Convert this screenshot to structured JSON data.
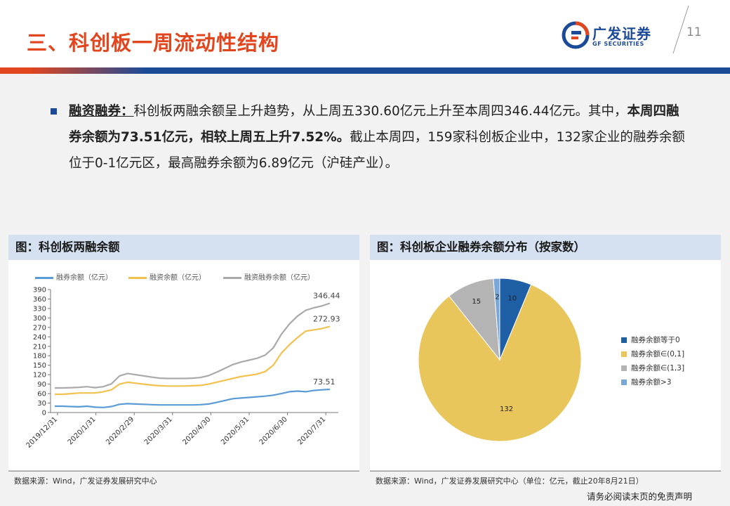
{
  "header": {
    "title": "三、科创板一周流动性结构",
    "logo_cn": "广发证券",
    "logo_en": "GF SECURITIES",
    "page_number": "11",
    "colors": {
      "red": "#e2461e",
      "blue": "#1b4b97"
    }
  },
  "body": {
    "label": "融资融券：",
    "p1": "科创板两融余额呈上升趋势，从上周五330.60亿元上升至本周四346.44亿元。其中，",
    "p2_bold": "本周四融券余额为73.51亿元，相较上周五上升7.52%。",
    "p3": "截止本周四，159家科创板企业中，132家企业的融券余额位于0-1亿元区，最高融券余额为6.89亿元（沪硅产业）。"
  },
  "left_panel": {
    "title": "图：科创板两融余额",
    "source": "数据来源：Wind，广发证券发展研究中心"
  },
  "right_panel": {
    "title": "图：科创板企业融券余额分布（按家数）",
    "source": "数据来源：Wind，广发证券发展研究中心（单位：亿元，截止20年8月21日）"
  },
  "disclaimer": "请务必阅读末页的免责声明",
  "chart_data": [
    {
      "type": "line",
      "x_ticks": [
        "2019/12/31",
        "2020/1/31",
        "2020/2/29",
        "2020/3/31",
        "2020/4/30",
        "2020/5/31",
        "2020/6/30",
        "2020/7/31"
      ],
      "ylim": [
        0,
        390
      ],
      "y_ticks": [
        0,
        30,
        60,
        90,
        120,
        150,
        180,
        210,
        240,
        270,
        300,
        330,
        360,
        390
      ],
      "series": [
        {
          "name": "融券余额（亿元）",
          "color": "#5b9bd5",
          "end_label": "73.51",
          "values": [
            20,
            20,
            19,
            18,
            20,
            17,
            16,
            19,
            26,
            28,
            27,
            26,
            25,
            24,
            24,
            24,
            24,
            24,
            25,
            27,
            32,
            38,
            44,
            46,
            48,
            50,
            52,
            55,
            60,
            66,
            68,
            66,
            70,
            72,
            73.51
          ]
        },
        {
          "name": "融资余额（亿元）",
          "color": "#f2c14e",
          "end_label": "272.93",
          "values": [
            58,
            58,
            60,
            62,
            62,
            62,
            66,
            72,
            90,
            96,
            93,
            90,
            87,
            85,
            84,
            84,
            84,
            85,
            86,
            90,
            96,
            102,
            108,
            114,
            118,
            122,
            130,
            150,
            188,
            215,
            238,
            258,
            262,
            266,
            272.93
          ]
        },
        {
          "name": "融资融券余额（亿元）",
          "color": "#aaaaaa",
          "end_label": "346.44",
          "values": [
            78,
            78,
            79,
            80,
            82,
            79,
            82,
            91,
            116,
            124,
            120,
            116,
            112,
            109,
            108,
            108,
            108,
            109,
            111,
            117,
            128,
            140,
            152,
            160,
            166,
            172,
            182,
            205,
            248,
            281,
            306,
            324,
            332,
            338,
            346.44
          ]
        }
      ]
    },
    {
      "type": "pie",
      "slices": [
        {
          "label": "融券余额等于0",
          "value": 10,
          "color": "#1f5fa6"
        },
        {
          "label": "融券余额∈(0,1]",
          "value": 132,
          "color": "#e8c65c"
        },
        {
          "label": "融券余额∈(1,3]",
          "value": 15,
          "color": "#b4b4b4"
        },
        {
          "label": "融券余额>3",
          "value": 2,
          "color": "#7aa7d9"
        }
      ]
    }
  ]
}
